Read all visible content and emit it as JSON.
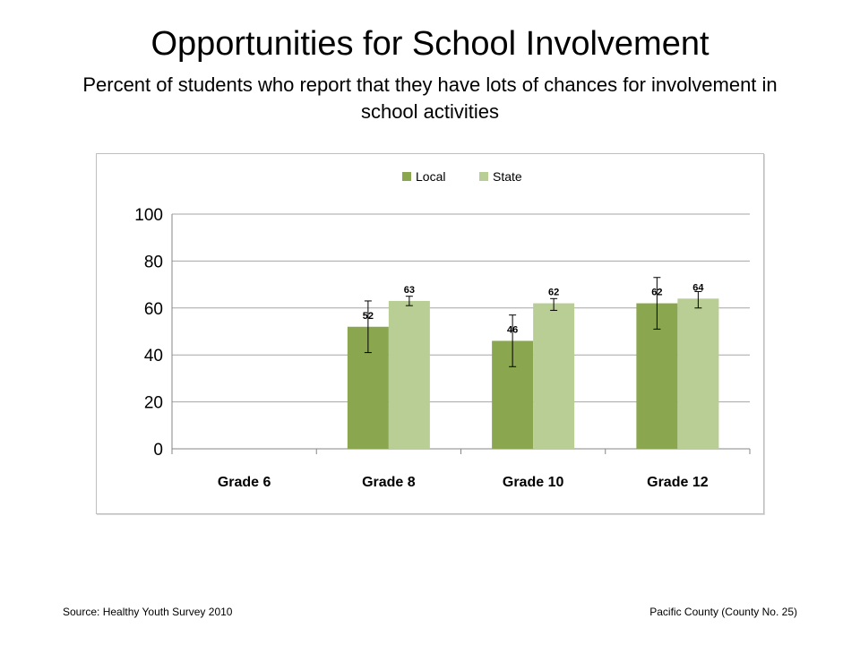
{
  "slide": {
    "title": "Opportunities for School Involvement",
    "subtitle": "Percent of students who report that they have lots of chances for involvement in school activities",
    "source": "Source: Healthy Youth Survey 2010",
    "county": "Pacific County (County No. 25)"
  },
  "colors": {
    "local": "#8aa64e",
    "state": "#b9ce94",
    "gridline": "#a6a6a6",
    "axis": "#868686"
  },
  "chart_data": {
    "type": "bar",
    "categories": [
      "Grade 6",
      "Grade 8",
      "Grade 10",
      "Grade 12"
    ],
    "series": [
      {
        "name": "Local",
        "values": [
          null,
          52,
          46,
          62
        ],
        "labels": [
          "",
          "52",
          "46",
          "62"
        ],
        "error_low": [
          null,
          41,
          35,
          51
        ],
        "error_high": [
          null,
          63,
          57,
          73
        ]
      },
      {
        "name": "State",
        "values": [
          null,
          63,
          62,
          64
        ],
        "labels": [
          "",
          "63",
          "62",
          "64"
        ],
        "error_low": [
          null,
          61,
          59,
          60
        ],
        "error_high": [
          null,
          65,
          64,
          67
        ]
      }
    ],
    "yticks": [
      "0",
      "20",
      "40",
      "60",
      "80",
      "100"
    ],
    "ylim": [
      0,
      100
    ],
    "grid": true,
    "legend": "top-center"
  }
}
